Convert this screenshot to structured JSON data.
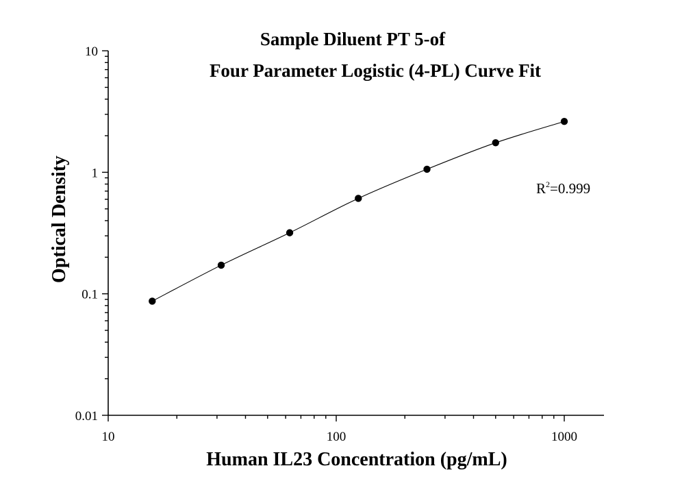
{
  "chart_data": {
    "type": "scatter",
    "title": [
      "Sample Diluent PT 5-of",
      "Four Parameter Logistic (4-PL) Curve Fit"
    ],
    "xlabel": "Human IL23 Concentration (pg/mL)",
    "ylabel": "Optical Density",
    "x_scale": "log",
    "y_scale": "log",
    "xlim": [
      10,
      1500
    ],
    "ylim": [
      0.01,
      10
    ],
    "x_ticks": [
      10,
      100,
      1000
    ],
    "x_tick_labels": [
      "10",
      "100",
      "1000"
    ],
    "y_ticks": [
      0.01,
      0.1,
      1,
      10
    ],
    "y_tick_labels": [
      "0.01",
      "0.1",
      "1",
      "10"
    ],
    "grid": false,
    "series": [
      {
        "x": [
          15.6,
          31.3,
          62.5,
          125,
          250,
          500,
          1000
        ],
        "y": [
          0.087,
          0.172,
          0.318,
          0.61,
          1.06,
          1.75,
          2.62
        ]
      }
    ],
    "annotation": {
      "r2_base": "R",
      "r2_exp": "2",
      "r2_value": "=0.999"
    }
  }
}
